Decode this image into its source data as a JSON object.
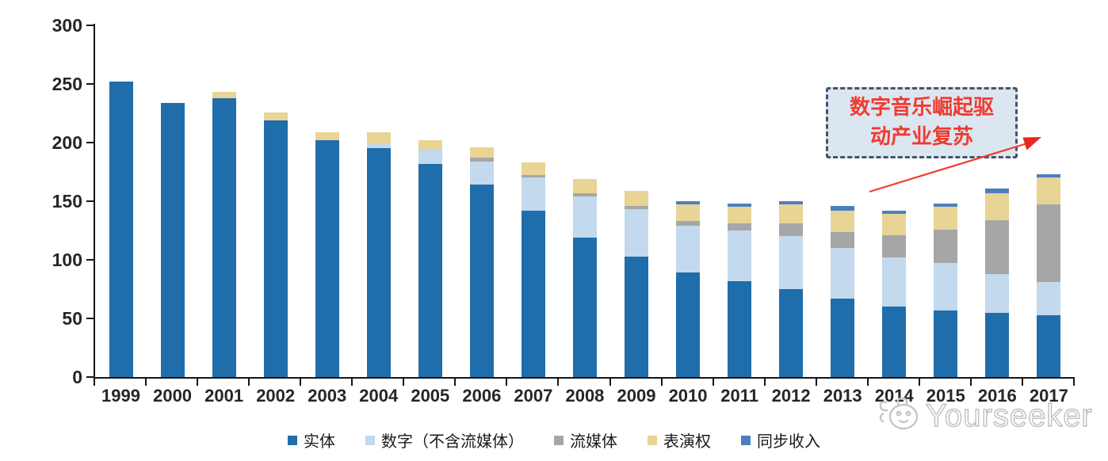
{
  "watermark": {
    "brand": "Yourseeker"
  },
  "annotation": {
    "line1": "数字音乐崛起驱",
    "line2": "动产业复苏",
    "full_text": "数字音乐崛起驱动产业复苏",
    "text_color": "#F03B30",
    "box_fill": "#DCE6F1",
    "box_border": "#44546A"
  },
  "chart_data": {
    "type": "bar",
    "stacked": true,
    "title": "",
    "xlabel": "",
    "ylabel": "",
    "ylim": [
      0,
      300
    ],
    "yticks": [
      0,
      50,
      100,
      150,
      200,
      250,
      300
    ],
    "grid": false,
    "legend_position": "bottom",
    "categories": [
      "1999",
      "2000",
      "2001",
      "2002",
      "2003",
      "2004",
      "2005",
      "2006",
      "2007",
      "2008",
      "2009",
      "2010",
      "2011",
      "2012",
      "2013",
      "2014",
      "2015",
      "2016",
      "2017"
    ],
    "series": [
      {
        "key": "physical",
        "name": "实体",
        "color": "#1F6DAB",
        "values": [
          252,
          234,
          238,
          219,
          202,
          195,
          182,
          164,
          142,
          119,
          103,
          89,
          82,
          75,
          67,
          60,
          57,
          55,
          53
        ]
      },
      {
        "key": "digital",
        "name": "数字（不含流媒体）",
        "color": "#C2D9EE",
        "values": [
          0,
          0,
          0,
          0,
          0,
          4,
          12,
          20,
          28,
          35,
          40,
          40,
          43,
          45,
          43,
          42,
          40,
          33,
          28
        ]
      },
      {
        "key": "streaming",
        "name": "流媒体",
        "color": "#A6A6A6",
        "values": [
          0,
          0,
          0,
          0,
          0,
          0,
          0,
          3,
          2,
          3,
          3,
          4,
          6,
          11,
          14,
          19,
          29,
          46,
          66
        ]
      },
      {
        "key": "performance",
        "name": "表演权",
        "color": "#E8D494",
        "values": [
          0,
          0,
          5,
          7,
          7,
          10,
          8,
          9,
          11,
          12,
          13,
          14,
          14,
          16,
          18,
          18,
          19,
          23,
          23
        ]
      },
      {
        "key": "sync",
        "name": "同步收入",
        "color": "#4A80BE",
        "values": [
          0,
          0,
          0,
          0,
          0,
          0,
          0,
          0,
          0,
          0,
          0,
          3,
          3,
          3,
          4,
          3,
          3,
          4,
          3
        ]
      }
    ]
  }
}
